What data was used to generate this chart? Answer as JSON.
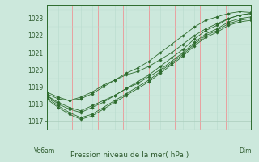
{
  "title": "Pression niveau de la mer( hPa )",
  "xlabel_left": "Ve6am",
  "xlabel_right": "Dim",
  "ylim": [
    1016.5,
    1023.8
  ],
  "yticks": [
    1017,
    1018,
    1019,
    1020,
    1021,
    1022,
    1023
  ],
  "bg_color": "#cce8dc",
  "grid_color_h": "#aaccbb",
  "grid_color_v": "#bbddd0",
  "red_grid_color": "#e8a0a0",
  "line_color": "#2d6b2d",
  "marker_color": "#2d6b2d",
  "series": [
    [
      1018.6,
      1018.3,
      1018.2,
      1018.4,
      1018.7,
      1019.1,
      1019.4,
      1019.7,
      1019.9,
      1020.2,
      1020.6,
      1021.0,
      1021.5,
      1022.0,
      1022.4,
      1022.7,
      1023.0,
      1023.2,
      1023.3
    ],
    [
      1018.5,
      1018.1,
      1017.8,
      1017.6,
      1017.9,
      1018.2,
      1018.5,
      1018.9,
      1019.2,
      1019.6,
      1020.0,
      1020.5,
      1021.0,
      1021.6,
      1022.1,
      1022.4,
      1022.8,
      1023.0,
      1023.1
    ],
    [
      1018.4,
      1017.9,
      1017.5,
      1017.2,
      1017.4,
      1017.8,
      1018.2,
      1018.6,
      1019.0,
      1019.4,
      1019.9,
      1020.4,
      1020.9,
      1021.5,
      1022.0,
      1022.3,
      1022.7,
      1022.9,
      1023.0
    ],
    [
      1018.3,
      1017.8,
      1017.4,
      1017.1,
      1017.3,
      1017.7,
      1018.1,
      1018.5,
      1018.9,
      1019.3,
      1019.8,
      1020.3,
      1020.8,
      1021.4,
      1021.9,
      1022.2,
      1022.6,
      1022.8,
      1022.9
    ],
    [
      1018.5,
      1018.0,
      1017.7,
      1017.5,
      1017.8,
      1018.1,
      1018.5,
      1018.9,
      1019.3,
      1019.7,
      1020.2,
      1020.7,
      1021.2,
      1021.8,
      1022.3,
      1022.6,
      1023.0,
      1023.2,
      1023.3
    ],
    [
      1018.7,
      1018.4,
      1018.2,
      1018.3,
      1018.6,
      1019.0,
      1019.4,
      1019.8,
      1020.1,
      1020.5,
      1021.0,
      1021.5,
      1022.0,
      1022.5,
      1022.9,
      1023.1,
      1023.3,
      1023.4,
      1023.35
    ]
  ],
  "n_vgrid_green": 18,
  "n_vgrid_red": 8,
  "figsize": [
    3.2,
    2.0
  ],
  "dpi": 100
}
